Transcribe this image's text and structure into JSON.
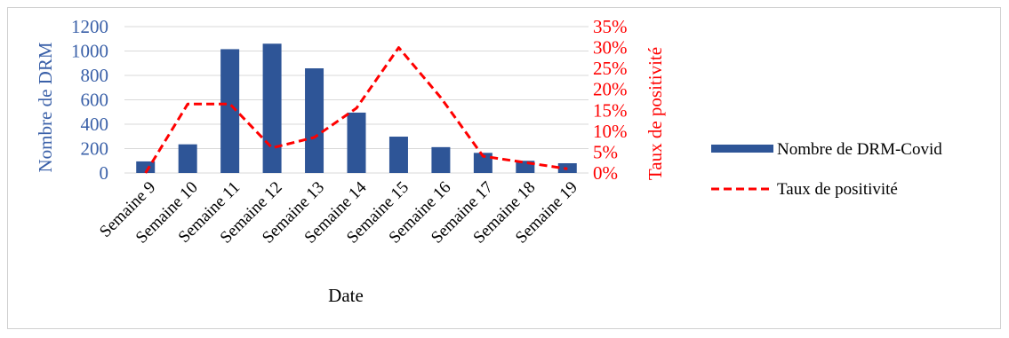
{
  "chart_data": {
    "type": "bar",
    "categories": [
      "Semaine 9",
      "Semaine 10",
      "Semaine 11",
      "Semaine 12",
      "Semaine 13",
      "Semaine 14",
      "Semaine 15",
      "Semaine 16",
      "Semaine 17",
      "Semaine 18",
      "Semaine 19"
    ],
    "series": [
      {
        "name": "Nombre de DRM-Covid",
        "type": "bar",
        "axis": "left",
        "values": [
          95,
          235,
          1015,
          1060,
          858,
          495,
          298,
          212,
          165,
          100,
          80
        ]
      },
      {
        "name": "Taux de positivité",
        "type": "line",
        "axis": "right",
        "line_style": "dashed",
        "values": [
          0,
          16.5,
          16.5,
          6,
          8.5,
          15.5,
          30,
          18,
          4,
          2.5,
          1
        ]
      }
    ],
    "xlabel": "Date",
    "ylabel": "Nombre de DRM",
    "y2label": "Taux de positivité",
    "ylim": [
      0,
      1200
    ],
    "y2lim": [
      0,
      35
    ],
    "yticks": [
      "0",
      "200",
      "400",
      "600",
      "800",
      "1000",
      "1200"
    ],
    "y2ticks": [
      "0%",
      "5%",
      "10%",
      "15%",
      "20%",
      "25%",
      "30%",
      "35%"
    ],
    "grid": true,
    "legend_position": "right",
    "colors": {
      "bar": "#2E5597",
      "line": "#FF0000",
      "left_axis_text": "#3A60A8",
      "right_axis_text": "#FF0000",
      "grid": "#D9D9D9"
    }
  }
}
